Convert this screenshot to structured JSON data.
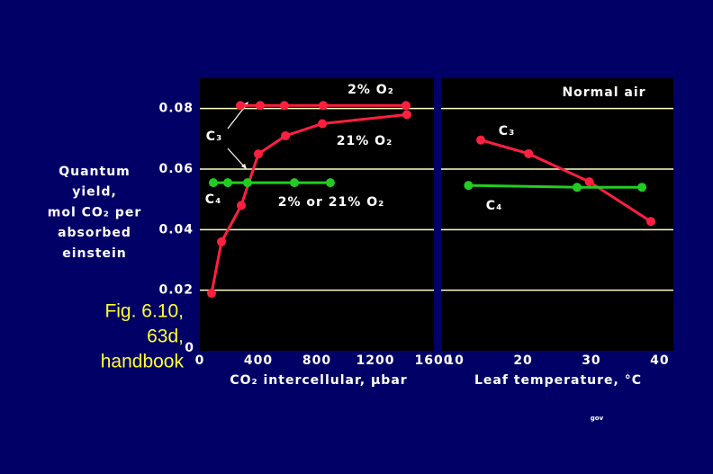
{
  "chart_data": [
    {
      "type": "line",
      "xlabel": "CO₂ intercellular, µbar",
      "ylabel": [
        "Quantum",
        "yield,",
        "mol CO₂ per",
        "absorbed",
        "einstein"
      ],
      "xlim": [
        0,
        1600
      ],
      "xticks": [
        0,
        400,
        800,
        1200,
        1600
      ],
      "ylim": [
        0,
        0.09
      ],
      "yticks": [
        0,
        0.02,
        0.04,
        0.06,
        0.08
      ],
      "grid": true,
      "annotations": [
        "C₃",
        "C₄"
      ],
      "series": [
        {
          "name": "2% O₂",
          "color": "#ff2040",
          "x": [
            277,
            412,
            578,
            843,
            1409
          ],
          "values": [
            0.081,
            0.081,
            0.081,
            0.081,
            0.081
          ]
        },
        {
          "name": "21% O₂",
          "color": "#ff2040",
          "x": [
            80,
            148,
            283,
            400,
            585,
            837,
            1415
          ],
          "values": [
            0.019,
            0.036,
            0.048,
            0.065,
            0.071,
            0.075,
            0.078
          ]
        },
        {
          "name": "2% or 21% O₂",
          "color": "#22cc22",
          "x": [
            92,
            191,
            326,
            646,
            892
          ],
          "values": [
            0.0555,
            0.0555,
            0.0555,
            0.0555,
            0.0555
          ]
        }
      ]
    },
    {
      "type": "line",
      "title": "Normal air",
      "xlabel": "Leaf temperature, °C",
      "xlim": [
        8,
        42
      ],
      "xticks": [
        10,
        20,
        30,
        40
      ],
      "ylim": [
        0,
        0.09
      ],
      "grid": true,
      "series": [
        {
          "name": "C₃",
          "color": "#ff2040",
          "x": [
            13.8,
            20.8,
            29.7,
            38.7
          ],
          "values": [
            0.0696,
            0.0651,
            0.0558,
            0.0427
          ]
        },
        {
          "name": "C₄",
          "color": "#22cc22",
          "x": [
            12.0,
            27.9,
            37.4
          ],
          "values": [
            0.0546,
            0.054,
            0.054
          ]
        }
      ]
    }
  ],
  "caption": [
    "Fig. 6.10,",
    "63d,",
    "handbook"
  ],
  "footer": "gov"
}
